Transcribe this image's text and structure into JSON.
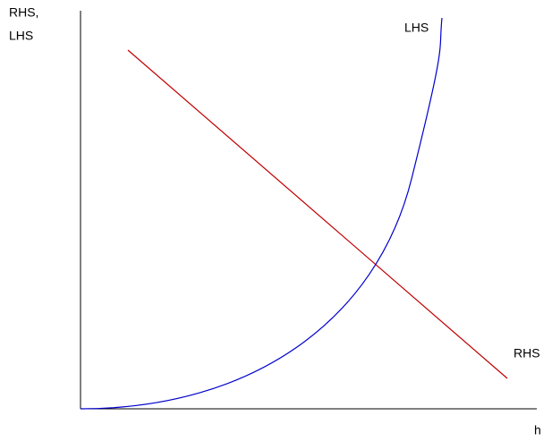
{
  "axes": {
    "y_label_lines": [
      "RHS,",
      "LHS"
    ],
    "x_label": "h"
  },
  "curves": {
    "lhs_label": "LHS",
    "rhs_label": "RHS"
  }
}
